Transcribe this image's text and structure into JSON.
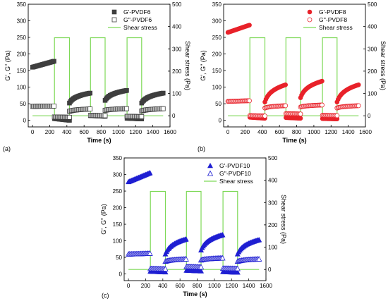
{
  "chart_data": [
    {
      "panel_label": "(a)",
      "type": "scatter",
      "xlabel": "Time (s)",
      "ylabel_left": "G', G\" (Pa)",
      "ylabel_right": "Shear stress (Pa)",
      "xlim": [
        -50,
        1600
      ],
      "ylim_left": [
        -20,
        350
      ],
      "ylim_right": [
        -50,
        500
      ],
      "xticks": [
        0,
        200,
        400,
        600,
        800,
        1000,
        1200,
        1400,
        1600
      ],
      "yticks_left": [
        0,
        50,
        100,
        150,
        200,
        250,
        300,
        350
      ],
      "yticks_right": [
        0,
        100,
        200,
        300,
        400,
        500
      ],
      "legend_position": "top-right",
      "color": "#3f3f3f",
      "series": [
        {
          "name": "G'-PVDF6",
          "marker": "filled-square",
          "segments": [
            {
              "x0": 0,
              "x1": 250,
              "y0": 160,
              "y1": 178,
              "shape": "linear"
            },
            {
              "x0": 255,
              "x1": 430,
              "y0": 5,
              "y1": 0,
              "shape": "linear"
            },
            {
              "x0": 430,
              "x1": 670,
              "y0": 52,
              "y1": 82,
              "shape": "log"
            },
            {
              "x0": 675,
              "x1": 845,
              "y0": 14,
              "y1": 12,
              "shape": "linear"
            },
            {
              "x0": 845,
              "x1": 1095,
              "y0": 60,
              "y1": 90,
              "shape": "log"
            },
            {
              "x0": 1100,
              "x1": 1270,
              "y0": 6,
              "y1": 4,
              "shape": "linear"
            },
            {
              "x0": 1270,
              "x1": 1520,
              "y0": 52,
              "y1": 82,
              "shape": "log"
            }
          ]
        },
        {
          "name": "G''-PVDF6",
          "marker": "open-square",
          "segments": [
            {
              "x0": 0,
              "x1": 250,
              "y0": 42,
              "y1": 43,
              "shape": "linear"
            },
            {
              "x0": 255,
              "x1": 430,
              "y0": 10,
              "y1": 9,
              "shape": "linear"
            },
            {
              "x0": 430,
              "x1": 670,
              "y0": 27,
              "y1": 34,
              "shape": "log"
            },
            {
              "x0": 675,
              "x1": 845,
              "y0": 15,
              "y1": 14,
              "shape": "linear"
            },
            {
              "x0": 845,
              "x1": 1095,
              "y0": 30,
              "y1": 35,
              "shape": "log"
            },
            {
              "x0": 1100,
              "x1": 1270,
              "y0": 12,
              "y1": 11,
              "shape": "linear"
            },
            {
              "x0": 1270,
              "x1": 1520,
              "y0": 28,
              "y1": 35,
              "shape": "log"
            }
          ]
        },
        {
          "name": "Shear stress",
          "axis": "right",
          "line": true,
          "x": [
            0,
            255,
            255,
            430,
            430,
            675,
            675,
            845,
            845,
            1100,
            1100,
            1270,
            1270,
            1520
          ],
          "y": [
            0,
            0,
            350,
            350,
            0,
            0,
            350,
            350,
            0,
            0,
            350,
            350,
            0,
            0
          ]
        }
      ]
    },
    {
      "panel_label": "(b)",
      "type": "scatter",
      "xlabel": "Time (s)",
      "ylabel_left": "G', G\" (Pa)",
      "ylabel_right": "Shear stress (Pa)",
      "xlim": [
        -50,
        1600
      ],
      "ylim_left": [
        -20,
        350
      ],
      "ylim_right": [
        -50,
        500
      ],
      "xticks": [
        0,
        200,
        400,
        600,
        800,
        1000,
        1200,
        1400,
        1600
      ],
      "yticks_left": [
        0,
        50,
        100,
        150,
        200,
        250,
        300,
        350
      ],
      "yticks_right": [
        0,
        100,
        200,
        300,
        400,
        500
      ],
      "legend_position": "top-right",
      "color": "#e8222a",
      "series": [
        {
          "name": "G'-PVDF8",
          "marker": "filled-circle",
          "segments": [
            {
              "x0": 0,
              "x1": 250,
              "y0": 265,
              "y1": 287,
              "shape": "linear"
            },
            {
              "x0": 255,
              "x1": 430,
              "y0": 9,
              "y1": 6,
              "shape": "linear"
            },
            {
              "x0": 430,
              "x1": 670,
              "y0": 55,
              "y1": 107,
              "shape": "log"
            },
            {
              "x0": 675,
              "x1": 845,
              "y0": 8,
              "y1": 6,
              "shape": "linear"
            },
            {
              "x0": 845,
              "x1": 1095,
              "y0": 68,
              "y1": 118,
              "shape": "log"
            },
            {
              "x0": 1100,
              "x1": 1270,
              "y0": 5,
              "y1": 4,
              "shape": "linear"
            },
            {
              "x0": 1270,
              "x1": 1520,
              "y0": 55,
              "y1": 107,
              "shape": "log"
            }
          ]
        },
        {
          "name": "G''-PVDF8",
          "marker": "open-circle",
          "segments": [
            {
              "x0": 0,
              "x1": 250,
              "y0": 57,
              "y1": 59,
              "shape": "linear"
            },
            {
              "x0": 255,
              "x1": 430,
              "y0": 14,
              "y1": 13,
              "shape": "linear"
            },
            {
              "x0": 430,
              "x1": 670,
              "y0": 37,
              "y1": 44,
              "shape": "log"
            },
            {
              "x0": 675,
              "x1": 845,
              "y0": 20,
              "y1": 19,
              "shape": "linear"
            },
            {
              "x0": 845,
              "x1": 1095,
              "y0": 40,
              "y1": 46,
              "shape": "log"
            },
            {
              "x0": 1100,
              "x1": 1270,
              "y0": 15,
              "y1": 14,
              "shape": "linear"
            },
            {
              "x0": 1270,
              "x1": 1520,
              "y0": 37,
              "y1": 44,
              "shape": "log"
            }
          ]
        },
        {
          "name": "Shear stress",
          "axis": "right",
          "line": true,
          "x": [
            0,
            255,
            255,
            430,
            430,
            675,
            675,
            845,
            845,
            1100,
            1100,
            1270,
            1270,
            1520
          ],
          "y": [
            0,
            0,
            350,
            350,
            0,
            0,
            350,
            350,
            0,
            0,
            350,
            350,
            0,
            0
          ]
        }
      ]
    },
    {
      "panel_label": "(c)",
      "type": "scatter",
      "xlabel": "Time (s)",
      "ylabel_left": "G', G\" (Pa)",
      "ylabel_right": "Shear stress (Pa)",
      "xlim": [
        -50,
        1600
      ],
      "ylim_left": [
        -20,
        350
      ],
      "ylim_right": [
        -50,
        500
      ],
      "xticks": [
        0,
        200,
        400,
        600,
        800,
        1000,
        1200,
        1400,
        1600
      ],
      "yticks_left": [
        0,
        50,
        100,
        150,
        200,
        250,
        300,
        350
      ],
      "yticks_right": [
        0,
        100,
        200,
        300,
        400,
        500
      ],
      "legend_position": "top-right",
      "color": "#1f1fd2",
      "series": [
        {
          "name": "G'-PVDF10",
          "marker": "filled-triangle",
          "segments": [
            {
              "x0": 0,
              "x1": 250,
              "y0": 278,
              "y1": 305,
              "shape": "linear"
            },
            {
              "x0": 255,
              "x1": 430,
              "y0": 8,
              "y1": 6,
              "shape": "linear"
            },
            {
              "x0": 430,
              "x1": 670,
              "y0": 60,
              "y1": 105,
              "shape": "log"
            },
            {
              "x0": 675,
              "x1": 845,
              "y0": 11,
              "y1": 9,
              "shape": "linear"
            },
            {
              "x0": 845,
              "x1": 1095,
              "y0": 72,
              "y1": 118,
              "shape": "log"
            },
            {
              "x0": 1100,
              "x1": 1270,
              "y0": 7,
              "y1": 5,
              "shape": "linear"
            },
            {
              "x0": 1270,
              "x1": 1520,
              "y0": 60,
              "y1": 103,
              "shape": "log"
            }
          ]
        },
        {
          "name": "G''-PVDF10",
          "marker": "open-triangle",
          "segments": [
            {
              "x0": 0,
              "x1": 250,
              "y0": 60,
              "y1": 62,
              "shape": "linear"
            },
            {
              "x0": 255,
              "x1": 430,
              "y0": 16,
              "y1": 15,
              "shape": "linear"
            },
            {
              "x0": 430,
              "x1": 670,
              "y0": 38,
              "y1": 45,
              "shape": "log"
            },
            {
              "x0": 675,
              "x1": 845,
              "y0": 22,
              "y1": 21,
              "shape": "linear"
            },
            {
              "x0": 845,
              "x1": 1095,
              "y0": 42,
              "y1": 48,
              "shape": "log"
            },
            {
              "x0": 1100,
              "x1": 1270,
              "y0": 17,
              "y1": 16,
              "shape": "linear"
            },
            {
              "x0": 1270,
              "x1": 1520,
              "y0": 38,
              "y1": 45,
              "shape": "log"
            }
          ]
        },
        {
          "name": "Shear stress",
          "axis": "right",
          "line": true,
          "x": [
            0,
            255,
            255,
            430,
            430,
            675,
            675,
            845,
            845,
            1100,
            1100,
            1270,
            1270,
            1520
          ],
          "y": [
            0,
            0,
            350,
            350,
            0,
            0,
            350,
            350,
            0,
            0,
            350,
            350,
            0,
            0
          ]
        }
      ]
    }
  ],
  "colors": {
    "stress_line": "#7ed957",
    "axis": "#000000"
  }
}
